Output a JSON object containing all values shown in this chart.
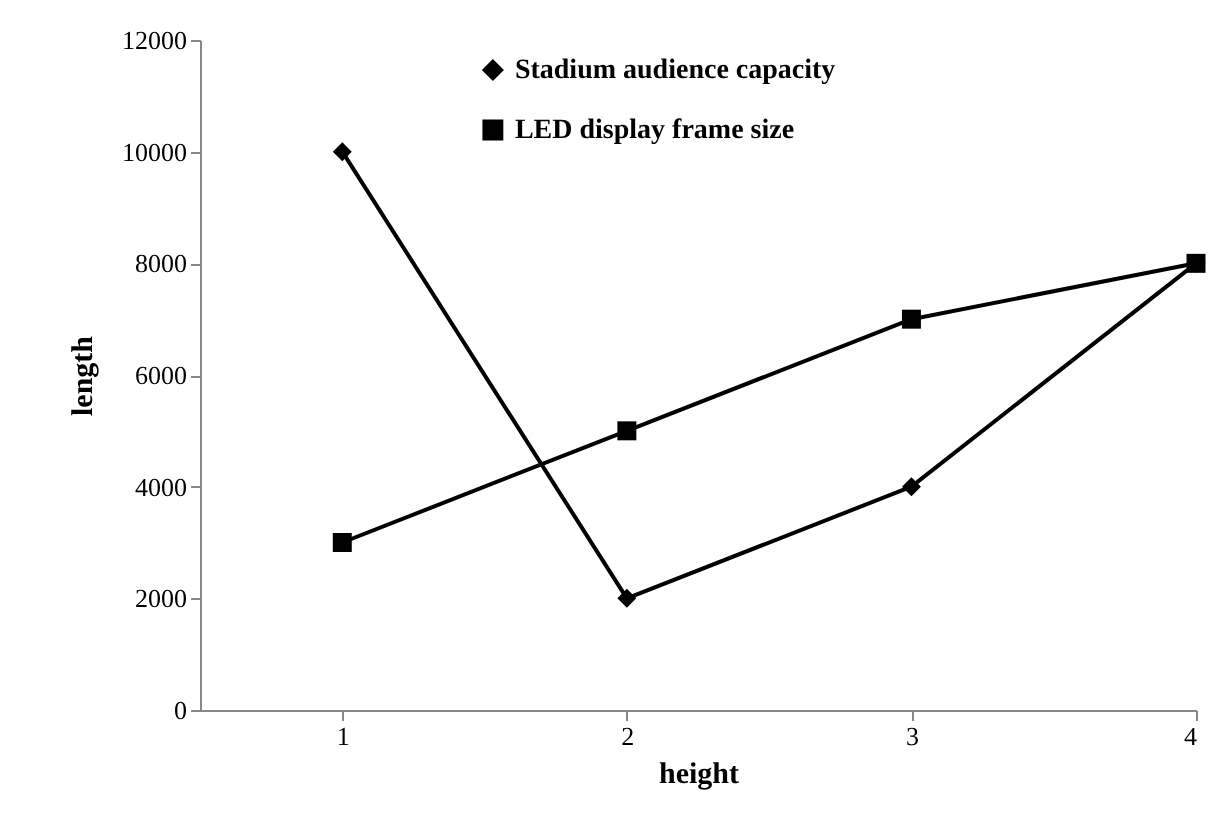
{
  "chart_data": {
    "type": "line",
    "xlabel": "height",
    "ylabel": "length",
    "x": [
      1,
      2,
      3,
      4
    ],
    "xlim": [
      0.5,
      4
    ],
    "xticks": [
      1,
      2,
      3,
      4
    ],
    "ylim": [
      0,
      12000
    ],
    "yticks": [
      0,
      2000,
      4000,
      6000,
      8000,
      10000,
      12000
    ],
    "grid": false,
    "legend": "top",
    "series": [
      {
        "name": "Stadium audience capacity",
        "color": "#000000",
        "marker": "diamond",
        "values": [
          10000,
          2000,
          4000,
          8000
        ]
      },
      {
        "name": "LED display frame size",
        "color": "#000000",
        "marker": "square",
        "values": [
          3000,
          5000,
          7000,
          8000
        ]
      }
    ]
  }
}
